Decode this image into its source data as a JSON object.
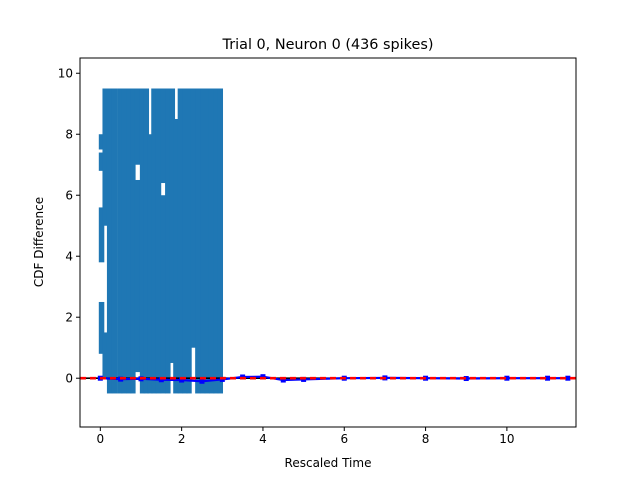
{
  "chart_data": {
    "type": "scatter",
    "title": "Trial 0, Neuron 0 (436 spikes)",
    "xlabel": "Rescaled Time",
    "ylabel": "CDF Difference",
    "xlim": [
      -0.5,
      11.7
    ],
    "ylim": [
      -1.6,
      10.5
    ],
    "xticks": [
      0,
      2,
      4,
      6,
      8,
      10
    ],
    "yticks": [
      0,
      2,
      4,
      6,
      8,
      10
    ],
    "grid": false,
    "colors": {
      "spike_bars": "#1f77b4",
      "difference_line": "#0000ff",
      "reference_line": "#ff0000",
      "zero_line": "#000000",
      "axes": "#000000"
    },
    "series": [
      {
        "style": "vertical spike bars",
        "bar_top": 9.5,
        "bar_bottom": -0.5,
        "x_range": [
          0.0,
          3.0
        ],
        "columns": [
          {
            "x": 0.03,
            "segments": [
              [
                0.8,
                2.5
              ],
              [
                3.8,
                5.6
              ],
              [
                6.8,
                7.4
              ],
              [
                7.5,
                8.0
              ]
            ]
          },
          {
            "x": 0.12,
            "segments": [
              [
                0.0,
                1.5
              ],
              [
                5.0,
                9.5
              ]
            ]
          },
          {
            "x": 0.23,
            "segments": [
              [
                -0.5,
                9.5
              ]
            ]
          },
          {
            "x": 0.35,
            "segments": [
              [
                -0.5,
                9.5
              ]
            ]
          },
          {
            "x": 0.48,
            "segments": [
              [
                -0.5,
                9.5
              ]
            ]
          },
          {
            "x": 0.58,
            "segments": [
              [
                -0.5,
                9.5
              ]
            ]
          },
          {
            "x": 0.7,
            "segments": [
              [
                -0.5,
                9.5
              ]
            ]
          },
          {
            "x": 0.8,
            "segments": [
              [
                -0.5,
                9.5
              ]
            ]
          },
          {
            "x": 0.92,
            "segments": [
              [
                0.2,
                6.5
              ],
              [
                7.0,
                9.5
              ]
            ]
          },
          {
            "x": 1.04,
            "segments": [
              [
                -0.5,
                9.5
              ]
            ]
          },
          {
            "x": 1.13,
            "segments": [
              [
                -0.5,
                9.5
              ]
            ]
          },
          {
            "x": 1.22,
            "segments": [
              [
                -0.5,
                8.0
              ]
            ]
          },
          {
            "x": 1.32,
            "segments": [
              [
                -0.5,
                9.5
              ]
            ]
          },
          {
            "x": 1.43,
            "segments": [
              [
                -0.5,
                9.5
              ]
            ]
          },
          {
            "x": 1.55,
            "segments": [
              [
                -0.5,
                6.0
              ],
              [
                6.4,
                9.5
              ]
            ]
          },
          {
            "x": 1.66,
            "segments": [
              [
                -0.5,
                9.5
              ]
            ]
          },
          {
            "x": 1.77,
            "segments": [
              [
                0.5,
                9.5
              ]
            ]
          },
          {
            "x": 1.86,
            "segments": [
              [
                -0.5,
                8.5
              ]
            ]
          },
          {
            "x": 1.97,
            "segments": [
              [
                -0.5,
                9.5
              ]
            ]
          },
          {
            "x": 2.08,
            "segments": [
              [
                -0.5,
                9.5
              ]
            ]
          },
          {
            "x": 2.18,
            "segments": [
              [
                -0.5,
                9.5
              ]
            ]
          },
          {
            "x": 2.28,
            "segments": [
              [
                1.0,
                9.5
              ]
            ]
          },
          {
            "x": 2.4,
            "segments": [
              [
                -0.5,
                9.5
              ]
            ]
          },
          {
            "x": 2.52,
            "segments": [
              [
                -0.5,
                9.5
              ]
            ]
          },
          {
            "x": 2.63,
            "segments": [
              [
                -0.5,
                9.5
              ]
            ]
          },
          {
            "x": 2.74,
            "segments": [
              [
                -0.5,
                9.5
              ]
            ]
          },
          {
            "x": 2.84,
            "segments": [
              [
                -0.5,
                9.5
              ]
            ]
          },
          {
            "x": 2.95,
            "segments": [
              [
                -0.5,
                9.5
              ]
            ]
          }
        ]
      },
      {
        "style": "blue line with markers",
        "x": [
          0.0,
          0.5,
          1.0,
          1.5,
          2.0,
          2.5,
          3.0,
          3.5,
          4.0,
          4.5,
          5.0,
          6.0,
          7.0,
          8.0,
          9.0,
          10.0,
          11.0,
          11.5
        ],
        "y": [
          0.0,
          -0.03,
          -0.02,
          -0.05,
          -0.06,
          -0.1,
          -0.04,
          0.04,
          0.05,
          -0.06,
          -0.04,
          0.0,
          0.01,
          0.0,
          -0.01,
          0.0,
          0.0,
          0.0
        ]
      },
      {
        "style": "red dashed line",
        "x": [
          -0.5,
          11.7
        ],
        "y": [
          0.0,
          0.0
        ]
      }
    ]
  }
}
